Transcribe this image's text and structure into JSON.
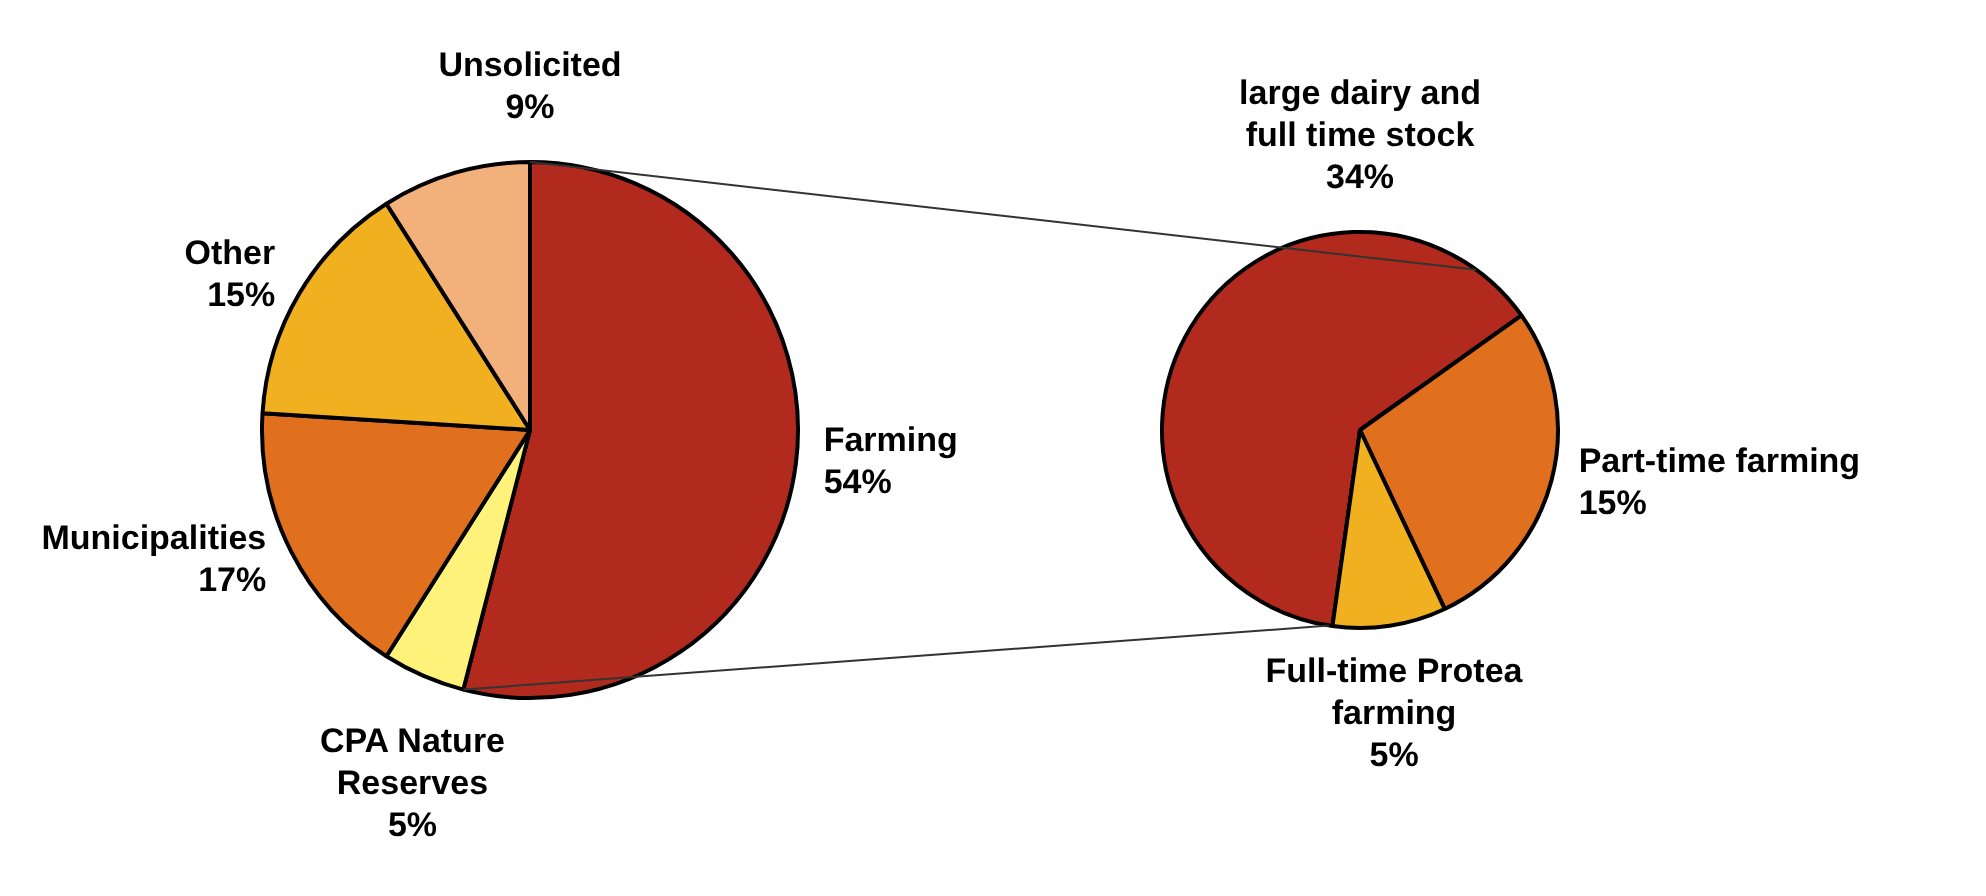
{
  "chart_data": [
    {
      "type": "pie",
      "categories": [
        "Farming",
        "CPA Nature Reserves",
        "Municipalities",
        "Other",
        "Unsolicited"
      ],
      "values": [
        54,
        5,
        17,
        15,
        9
      ],
      "value_labels": [
        "54%",
        "5%",
        "17%",
        "15%",
        "9%"
      ],
      "colors": [
        "#b22a1e",
        "#fff27a",
        "#e0701e",
        "#f0b020",
        "#f2b07a"
      ],
      "legend": false
    },
    {
      "type": "pie",
      "categories": [
        "large dairy and full time stock",
        "Part-time farming",
        "Full-time Protea farming"
      ],
      "values": [
        34,
        15,
        5
      ],
      "value_labels": [
        "34%",
        "15%",
        "5%"
      ],
      "colors": [
        "#b22a1e",
        "#e0701e",
        "#f0b020"
      ],
      "legend": false
    }
  ]
}
